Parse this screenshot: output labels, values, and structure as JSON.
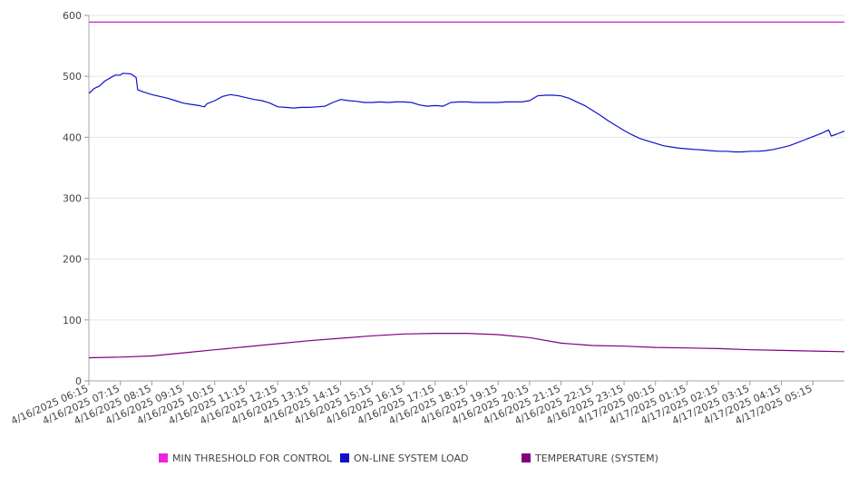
{
  "chart_data": {
    "type": "line",
    "title": "",
    "xlabel": "",
    "ylabel": "",
    "ylim": [
      0,
      600
    ],
    "yticks": [
      0,
      100,
      200,
      300,
      400,
      500,
      600
    ],
    "x_range": [
      "4/16/2025 06:15",
      "4/17/2025 06:15"
    ],
    "x_tick_labels": [
      "4/16/2025 06:15",
      "4/16/2025 07:15",
      "4/16/2025 08:15",
      "4/16/2025 09:15",
      "4/16/2025 10:15",
      "4/16/2025 11:15",
      "4/16/2025 12:15",
      "4/16/2025 13:15",
      "4/16/2025 14:15",
      "4/16/2025 15:15",
      "4/16/2025 16:15",
      "4/16/2025 17:15",
      "4/16/2025 18:15",
      "4/16/2025 19:15",
      "4/16/2025 20:15",
      "4/16/2025 21:15",
      "4/16/2025 22:15",
      "4/16/2025 23:15",
      "4/17/2025 00:15",
      "4/17/2025 01:15",
      "4/17/2025 02:15",
      "4/17/2025 03:15",
      "4/17/2025 04:15",
      "4/17/2025 05:15"
    ],
    "grid": true,
    "legend_position": "bottom",
    "series": [
      {
        "name": "MIN THRESHOLD FOR CONTROL",
        "color": "#cc22cc",
        "points": [
          [
            "4/16/2025 06:15",
            589
          ],
          [
            "4/17/2025 06:15",
            589
          ]
        ]
      },
      {
        "name": "ON-LINE SYSTEM LOAD",
        "color": "#1111cc",
        "points": [
          [
            "4/16/2025 06:15",
            472
          ],
          [
            "4/16/2025 06:25",
            480
          ],
          [
            "4/16/2025 06:35",
            484
          ],
          [
            "4/16/2025 06:45",
            492
          ],
          [
            "4/16/2025 06:55",
            497
          ],
          [
            "4/16/2025 07:05",
            502
          ],
          [
            "4/16/2025 07:15",
            502
          ],
          [
            "4/16/2025 07:20",
            505
          ],
          [
            "4/16/2025 07:35",
            504
          ],
          [
            "4/16/2025 07:45",
            498
          ],
          [
            "4/16/2025 07:48",
            478
          ],
          [
            "4/16/2025 08:00",
            474
          ],
          [
            "4/16/2025 08:15",
            470
          ],
          [
            "4/16/2025 08:30",
            467
          ],
          [
            "4/16/2025 08:45",
            464
          ],
          [
            "4/16/2025 09:00",
            460
          ],
          [
            "4/16/2025 09:15",
            456
          ],
          [
            "4/16/2025 09:30",
            454
          ],
          [
            "4/16/2025 09:45",
            452
          ],
          [
            "4/16/2025 09:55",
            450
          ],
          [
            "4/16/2025 10:00",
            455
          ],
          [
            "4/16/2025 10:15",
            460
          ],
          [
            "4/16/2025 10:30",
            467
          ],
          [
            "4/16/2025 10:45",
            470
          ],
          [
            "4/16/2025 11:00",
            468
          ],
          [
            "4/16/2025 11:15",
            465
          ],
          [
            "4/16/2025 11:30",
            462
          ],
          [
            "4/16/2025 11:45",
            460
          ],
          [
            "4/16/2025 12:00",
            456
          ],
          [
            "4/16/2025 12:15",
            450
          ],
          [
            "4/16/2025 12:30",
            449
          ],
          [
            "4/16/2025 12:45",
            448
          ],
          [
            "4/16/2025 13:00",
            449
          ],
          [
            "4/16/2025 13:15",
            449
          ],
          [
            "4/16/2025 13:30",
            450
          ],
          [
            "4/16/2025 13:45",
            451
          ],
          [
            "4/16/2025 14:00",
            457
          ],
          [
            "4/16/2025 14:15",
            462
          ],
          [
            "4/16/2025 14:30",
            460
          ],
          [
            "4/16/2025 14:45",
            459
          ],
          [
            "4/16/2025 15:00",
            457
          ],
          [
            "4/16/2025 15:15",
            457
          ],
          [
            "4/16/2025 15:30",
            458
          ],
          [
            "4/16/2025 15:45",
            457
          ],
          [
            "4/16/2025 16:00",
            458
          ],
          [
            "4/16/2025 16:15",
            458
          ],
          [
            "4/16/2025 16:30",
            457
          ],
          [
            "4/16/2025 16:45",
            453
          ],
          [
            "4/16/2025 17:00",
            451
          ],
          [
            "4/16/2025 17:15",
            452
          ],
          [
            "4/16/2025 17:30",
            451
          ],
          [
            "4/16/2025 17:45",
            457
          ],
          [
            "4/16/2025 18:00",
            458
          ],
          [
            "4/16/2025 18:15",
            458
          ],
          [
            "4/16/2025 18:30",
            457
          ],
          [
            "4/16/2025 18:45",
            457
          ],
          [
            "4/16/2025 19:00",
            457
          ],
          [
            "4/16/2025 19:15",
            457
          ],
          [
            "4/16/2025 19:30",
            458
          ],
          [
            "4/16/2025 19:45",
            458
          ],
          [
            "4/16/2025 20:00",
            458
          ],
          [
            "4/16/2025 20:15",
            460
          ],
          [
            "4/16/2025 20:30",
            468
          ],
          [
            "4/16/2025 20:45",
            469
          ],
          [
            "4/16/2025 21:00",
            469
          ],
          [
            "4/16/2025 21:15",
            468
          ],
          [
            "4/16/2025 21:30",
            464
          ],
          [
            "4/16/2025 21:45",
            458
          ],
          [
            "4/16/2025 22:00",
            452
          ],
          [
            "4/16/2025 22:15",
            444
          ],
          [
            "4/16/2025 22:30",
            436
          ],
          [
            "4/16/2025 22:45",
            427
          ],
          [
            "4/16/2025 23:00",
            419
          ],
          [
            "4/16/2025 23:15",
            411
          ],
          [
            "4/16/2025 23:30",
            404
          ],
          [
            "4/16/2025 23:45",
            398
          ],
          [
            "4/17/2025 00:00",
            394
          ],
          [
            "4/17/2025 00:15",
            390
          ],
          [
            "4/17/2025 00:30",
            386
          ],
          [
            "4/17/2025 00:45",
            384
          ],
          [
            "4/17/2025 01:00",
            382
          ],
          [
            "4/17/2025 01:15",
            381
          ],
          [
            "4/17/2025 01:30",
            380
          ],
          [
            "4/17/2025 01:45",
            379
          ],
          [
            "4/17/2025 02:00",
            378
          ],
          [
            "4/17/2025 02:15",
            377
          ],
          [
            "4/17/2025 02:30",
            377
          ],
          [
            "4/17/2025 02:45",
            376
          ],
          [
            "4/17/2025 03:00",
            376
          ],
          [
            "4/17/2025 03:15",
            377
          ],
          [
            "4/17/2025 03:30",
            377
          ],
          [
            "4/17/2025 03:45",
            378
          ],
          [
            "4/17/2025 04:00",
            380
          ],
          [
            "4/17/2025 04:15",
            383
          ],
          [
            "4/17/2025 04:30",
            386
          ],
          [
            "4/17/2025 04:45",
            391
          ],
          [
            "4/17/2025 05:00",
            396
          ],
          [
            "4/17/2025 05:15",
            401
          ],
          [
            "4/17/2025 05:30",
            406
          ],
          [
            "4/17/2025 05:45",
            412
          ],
          [
            "4/17/2025 05:50",
            402
          ],
          [
            "4/17/2025 06:00",
            405
          ],
          [
            "4/17/2025 06:15",
            410
          ]
        ]
      },
      {
        "name": "TEMPERATURE (SYSTEM)",
        "color": "#800080",
        "points": [
          [
            "4/16/2025 06:15",
            38
          ],
          [
            "4/16/2025 07:15",
            39
          ],
          [
            "4/16/2025 08:15",
            41
          ],
          [
            "4/16/2025 09:15",
            46
          ],
          [
            "4/16/2025 10:15",
            51
          ],
          [
            "4/16/2025 11:15",
            56
          ],
          [
            "4/16/2025 12:15",
            61
          ],
          [
            "4/16/2025 13:15",
            66
          ],
          [
            "4/16/2025 14:15",
            70
          ],
          [
            "4/16/2025 15:15",
            74
          ],
          [
            "4/16/2025 16:15",
            77
          ],
          [
            "4/16/2025 17:15",
            78
          ],
          [
            "4/16/2025 18:15",
            78
          ],
          [
            "4/16/2025 19:15",
            76
          ],
          [
            "4/16/2025 20:15",
            71
          ],
          [
            "4/16/2025 21:15",
            62
          ],
          [
            "4/16/2025 22:15",
            58
          ],
          [
            "4/16/2025 23:15",
            57
          ],
          [
            "4/17/2025 00:15",
            55
          ],
          [
            "4/17/2025 01:15",
            54
          ],
          [
            "4/17/2025 02:15",
            53
          ],
          [
            "4/17/2025 03:15",
            51
          ],
          [
            "4/17/2025 04:15",
            50
          ],
          [
            "4/17/2025 05:15",
            49
          ],
          [
            "4/17/2025 06:15",
            48
          ]
        ]
      }
    ]
  },
  "legend": {
    "items": [
      {
        "label": "MIN THRESHOLD FOR CONTROL",
        "color": "#ee22dd"
      },
      {
        "label": "ON-LINE SYSTEM LOAD",
        "color": "#1111cc"
      },
      {
        "label": "TEMPERATURE (SYSTEM)",
        "color": "#800080"
      }
    ]
  }
}
